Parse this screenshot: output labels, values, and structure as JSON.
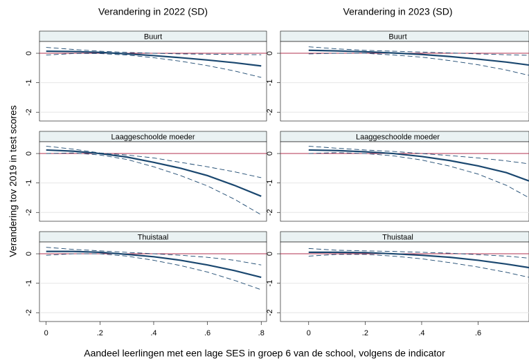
{
  "chart_data": {
    "type": "small-multiples",
    "ylabel": "Verandering tov 2019 in test scores",
    "xlabel": "Aandeel leerlingen met een lage SES in groep 6 van de school, volgens de indicator",
    "columns": [
      {
        "title": "Verandering in 2022 (SD)",
        "x": [
          0,
          0.1,
          0.2,
          0.3,
          0.4,
          0.5,
          0.6,
          0.7,
          0.8
        ],
        "xlim": [
          -0.025,
          0.82
        ],
        "xticks": [
          0,
          {
            "value": 0.2,
            "label": ".2"
          },
          {
            "value": 0.4,
            "label": ".4"
          },
          {
            "value": 0.6,
            "label": ".6"
          },
          {
            "value": 0.8,
            "label": ".8"
          }
        ],
        "panels": [
          {
            "type": "line",
            "title": "Buurt",
            "ylim": [
              -2.3,
              0.4
            ],
            "yticks": [
              0,
              -1,
              -2
            ],
            "grid": true,
            "hline": 0,
            "hline_color": "#b2304f",
            "series": [
              {
                "color": "#1a476f",
                "width": 2.2,
                "dashed": false,
                "values": [
                  0.07,
                  0.06,
                  0.03,
                  -0.02,
                  -0.08,
                  -0.15,
                  -0.23,
                  -0.32,
                  -0.43
                ]
              },
              {
                "color": "#1a476f",
                "width": 0.9,
                "dashed": true,
                "values": [
                  0.2,
                  0.13,
                  0.07,
                  0.03,
                  0,
                  -0.02,
                  -0.03,
                  -0.04,
                  -0.05
                ]
              },
              {
                "color": "#1a476f",
                "width": 0.9,
                "dashed": true,
                "values": [
                  -0.06,
                  -0.01,
                  -0.01,
                  -0.06,
                  -0.15,
                  -0.27,
                  -0.42,
                  -0.6,
                  -0.82
                ]
              }
            ]
          },
          {
            "type": "line",
            "title": "Laaggeschoolde moeder",
            "ylim": [
              -2.3,
              0.4
            ],
            "yticks": [
              0,
              -1,
              -2
            ],
            "grid": true,
            "hline": 0,
            "hline_color": "#b2304f",
            "series": [
              {
                "color": "#1a476f",
                "width": 2.2,
                "dashed": false,
                "values": [
                  0.12,
                  0.08,
                  0,
                  -0.12,
                  -0.3,
                  -0.5,
                  -0.75,
                  -1.08,
                  -1.45
                ]
              },
              {
                "color": "#1a476f",
                "width": 0.9,
                "dashed": true,
                "values": [
                  0.25,
                  0.15,
                  0.02,
                  -0.05,
                  -0.15,
                  -0.3,
                  -0.45,
                  -0.62,
                  -0.82
                ]
              },
              {
                "color": "#1a476f",
                "width": 0.9,
                "dashed": true,
                "values": [
                  0,
                  0.02,
                  -0.05,
                  -0.2,
                  -0.45,
                  -0.75,
                  -1.1,
                  -1.55,
                  -2.08
                ]
              }
            ]
          },
          {
            "type": "line",
            "title": "Thuistaal",
            "ylim": [
              -2.3,
              0.4
            ],
            "yticks": [
              0,
              -1,
              -2
            ],
            "grid": true,
            "hline": 0,
            "hline_color": "#b2304f",
            "series": [
              {
                "color": "#1a476f",
                "width": 2.2,
                "dashed": false,
                "values": [
                  0.08,
                  0.08,
                  0.05,
                  -0.02,
                  -0.1,
                  -0.22,
                  -0.38,
                  -0.57,
                  -0.8
                ]
              },
              {
                "color": "#1a476f",
                "width": 0.9,
                "dashed": true,
                "values": [
                  0.22,
                  0.15,
                  0.1,
                  0.05,
                  0,
                  -0.05,
                  -0.12,
                  -0.22,
                  -0.38
                ]
              },
              {
                "color": "#1a476f",
                "width": 0.9,
                "dashed": true,
                "values": [
                  -0.05,
                  0,
                  0,
                  -0.08,
                  -0.22,
                  -0.4,
                  -0.62,
                  -0.9,
                  -1.22
                ]
              }
            ]
          }
        ]
      },
      {
        "title": "Verandering in 2023 (SD)",
        "x": [
          0,
          0.1,
          0.2,
          0.3,
          0.4,
          0.5,
          0.6,
          0.7,
          0.78
        ],
        "xlim": [
          -0.1,
          0.78
        ],
        "xticks": [
          0,
          {
            "value": 0.2,
            "label": ".2"
          },
          {
            "value": 0.4,
            "label": ".4"
          },
          {
            "value": 0.6,
            "label": ".6"
          }
        ],
        "panels": [
          {
            "type": "line",
            "title": "Buurt",
            "ylim": [
              -2.3,
              0.4
            ],
            "yticks": [
              0,
              -1,
              -2
            ],
            "grid": true,
            "hline": 0,
            "hline_color": "#b2304f",
            "series": [
              {
                "color": "#1a476f",
                "width": 2.2,
                "dashed": false,
                "values": [
                  0.1,
                  0.08,
                  0.05,
                  0.01,
                  -0.04,
                  -0.11,
                  -0.2,
                  -0.3,
                  -0.4
                ]
              },
              {
                "color": "#1a476f",
                "width": 0.9,
                "dashed": true,
                "values": [
                  0.22,
                  0.15,
                  0.1,
                  0.07,
                  0.04,
                  0.01,
                  -0.02,
                  -0.05,
                  -0.07
                ]
              },
              {
                "color": "#1a476f",
                "width": 0.9,
                "dashed": true,
                "values": [
                  -0.02,
                  0,
                  0,
                  -0.06,
                  -0.13,
                  -0.25,
                  -0.39,
                  -0.57,
                  -0.75
                ]
              }
            ]
          },
          {
            "type": "line",
            "title": "Laaggeschoolde moeder",
            "ylim": [
              -2.3,
              0.4
            ],
            "yticks": [
              0,
              -1,
              -2
            ],
            "grid": true,
            "hline": 0,
            "hline_color": "#b2304f",
            "series": [
              {
                "color": "#1a476f",
                "width": 2.2,
                "dashed": false,
                "values": [
                  0.12,
                  0.1,
                  0.06,
                  0,
                  -0.1,
                  -0.24,
                  -0.42,
                  -0.65,
                  -0.93
                ]
              },
              {
                "color": "#1a476f",
                "width": 0.9,
                "dashed": true,
                "values": [
                  0.25,
                  0.18,
                  0.12,
                  0.07,
                  0,
                  -0.07,
                  -0.15,
                  -0.25,
                  -0.35
                ]
              },
              {
                "color": "#1a476f",
                "width": 0.9,
                "dashed": true,
                "values": [
                  0,
                  0.03,
                  0,
                  -0.08,
                  -0.22,
                  -0.43,
                  -0.7,
                  -1.08,
                  -1.5
                ]
              }
            ]
          },
          {
            "type": "line",
            "title": "Thuistaal",
            "ylim": [
              -2.3,
              0.4
            ],
            "yticks": [
              0,
              -1,
              -2
            ],
            "grid": true,
            "hline": 0,
            "hline_color": "#b2304f",
            "series": [
              {
                "color": "#1a476f",
                "width": 2.2,
                "dashed": false,
                "values": [
                  0.05,
                  0.05,
                  0.04,
                  0,
                  -0.05,
                  -0.12,
                  -0.22,
                  -0.35,
                  -0.47
                ]
              },
              {
                "color": "#1a476f",
                "width": 0.9,
                "dashed": true,
                "values": [
                  0.18,
                  0.12,
                  0.1,
                  0.08,
                  0.05,
                  0.02,
                  -0.03,
                  -0.08,
                  -0.15
                ]
              },
              {
                "color": "#1a476f",
                "width": 0.9,
                "dashed": true,
                "values": [
                  -0.08,
                  -0.02,
                  -0.02,
                  -0.08,
                  -0.17,
                  -0.3,
                  -0.45,
                  -0.63,
                  -0.8
                ]
              }
            ]
          }
        ]
      }
    ]
  }
}
